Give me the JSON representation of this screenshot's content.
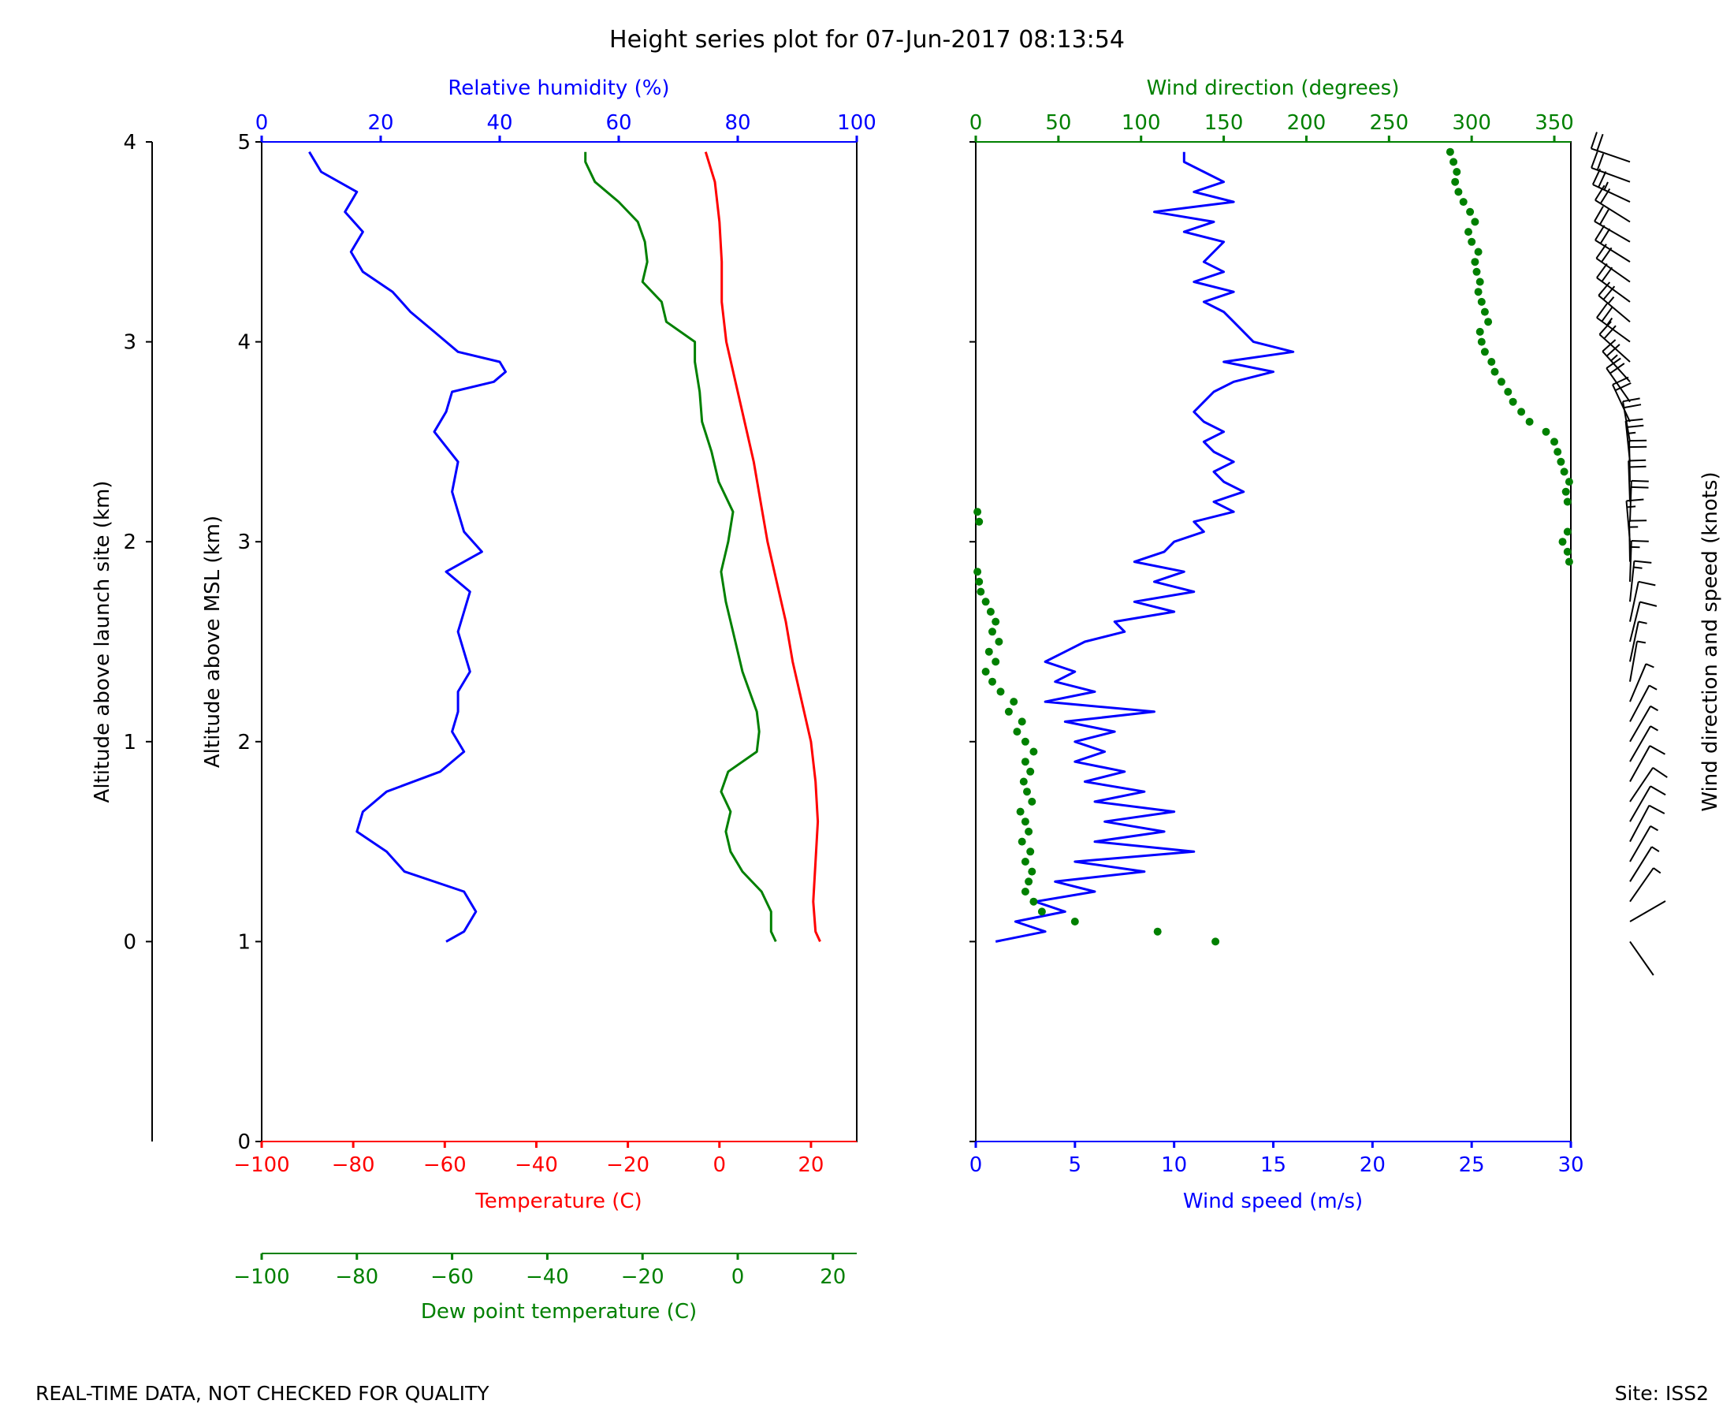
{
  "title": "Height series plot for 07-Jun-2017 08:13:54",
  "footer": {
    "left": "REAL-TIME DATA, NOT CHECKED FOR QUALITY",
    "right": "Site: ISS2"
  },
  "colors": {
    "blue": "#0000ff",
    "red": "#ff0000",
    "green": "#008000",
    "black": "#000000"
  },
  "chart_data": [
    {
      "type": "line",
      "panel": "thermodynamic",
      "ylabel_left_outer": "Altitude above launch site (km)",
      "ylabel_left_inner": "Altitude above MSL (km)",
      "y_msl_range": [
        0,
        5
      ],
      "y_msl_ticks": [
        "0",
        "1",
        "2",
        "3",
        "4",
        "5"
      ],
      "y_launch_ticks": [
        "0",
        "1",
        "2",
        "3",
        "4"
      ],
      "launch_site_altitude_km": 1.0,
      "axes": {
        "temperature": {
          "label": "Temperature (C)",
          "range": [
            -100,
            30
          ],
          "ticks": [
            -100,
            -80,
            -60,
            -40,
            -20,
            0,
            20
          ],
          "tick_labels": [
            "−100",
            "−80",
            "−60",
            "−40",
            "−20",
            "0",
            "20"
          ],
          "color": "#ff0000"
        },
        "dewpoint": {
          "label": "Dew point temperature (C)",
          "range": [
            -100,
            25
          ],
          "ticks": [
            -100,
            -80,
            -60,
            -40,
            -20,
            0,
            20
          ],
          "tick_labels": [
            "−100",
            "−80",
            "−60",
            "−40",
            "−20",
            "0",
            "20"
          ],
          "color": "#008000"
        },
        "rh": {
          "label": "Relative humidity (%)",
          "range": [
            0,
            100
          ],
          "ticks": [
            0,
            20,
            40,
            60,
            80,
            100
          ],
          "tick_labels": [
            "0",
            "20",
            "40",
            "60",
            "80",
            "100"
          ],
          "color": "#0000ff"
        }
      },
      "series": [
        {
          "name": "Temperature",
          "units": "C",
          "color": "#ff0000",
          "alt": [
            1.0,
            1.05,
            1.2,
            1.4,
            1.6,
            1.8,
            2.0,
            2.2,
            2.4,
            2.6,
            2.8,
            3.0,
            3.2,
            3.4,
            3.6,
            3.8,
            4.0,
            4.2,
            4.4,
            4.6,
            4.8,
            4.95
          ],
          "values": [
            22,
            21,
            20.5,
            21,
            21.5,
            21,
            20,
            18,
            16,
            14.5,
            12.5,
            10.5,
            9,
            7.5,
            5.5,
            3.5,
            1.5,
            0.5,
            0.5,
            0,
            -1,
            -3
          ]
        },
        {
          "name": "Dew point",
          "units": "C",
          "color": "#008000",
          "alt": [
            1.0,
            1.05,
            1.15,
            1.25,
            1.35,
            1.45,
            1.55,
            1.65,
            1.75,
            1.85,
            1.95,
            2.05,
            2.15,
            2.25,
            2.35,
            2.45,
            2.55,
            2.7,
            2.85,
            3.0,
            3.15,
            3.3,
            3.45,
            3.6,
            3.75,
            3.9,
            4.0,
            4.1,
            4.2,
            4.3,
            4.4,
            4.5,
            4.6,
            4.7,
            4.8,
            4.9,
            4.95
          ],
          "values": [
            8,
            7,
            7,
            5,
            1,
            -1.5,
            -2.5,
            -1.5,
            -3.5,
            -2,
            4,
            4.5,
            4,
            2.5,
            1,
            0,
            -1,
            -2.5,
            -3.5,
            -2,
            -1,
            -4,
            -5.5,
            -7.5,
            -8,
            -9,
            -9,
            -15,
            -16,
            -20,
            -19,
            -19.5,
            -21,
            -25,
            -30,
            -32,
            -32
          ]
        },
        {
          "name": "Relative humidity",
          "units": "%",
          "color": "#0000ff",
          "alt": [
            1.0,
            1.05,
            1.15,
            1.25,
            1.35,
            1.45,
            1.55,
            1.65,
            1.75,
            1.85,
            1.95,
            2.05,
            2.15,
            2.25,
            2.35,
            2.45,
            2.55,
            2.65,
            2.75,
            2.85,
            2.95,
            3.05,
            3.15,
            3.25,
            3.4,
            3.55,
            3.65,
            3.75,
            3.8,
            3.85,
            3.9,
            3.95,
            4.05,
            4.15,
            4.25,
            4.35,
            4.45,
            4.55,
            4.65,
            4.75,
            4.85,
            4.95
          ],
          "values": [
            31,
            34,
            36,
            34,
            24,
            21,
            16,
            17,
            21,
            30,
            34,
            32,
            33,
            33,
            35,
            34,
            33,
            34,
            35,
            31,
            37,
            34,
            33,
            32,
            33,
            29,
            31,
            32,
            39,
            41,
            40,
            33,
            29,
            25,
            22,
            17,
            15,
            17,
            14,
            16,
            10,
            8
          ]
        }
      ]
    },
    {
      "type": "line",
      "panel": "wind",
      "axes": {
        "speed": {
          "label": "Wind speed (m/s)",
          "range": [
            0,
            30
          ],
          "ticks": [
            0,
            5,
            10,
            15,
            20,
            25,
            30
          ],
          "tick_labels": [
            "0",
            "5",
            "10",
            "15",
            "20",
            "25",
            "30"
          ],
          "color": "#0000ff"
        },
        "direction": {
          "label": "Wind direction (degrees)",
          "range": [
            0,
            360
          ],
          "ticks": [
            0,
            50,
            100,
            150,
            200,
            250,
            300,
            350
          ],
          "tick_labels": [
            "0",
            "50",
            "100",
            "150",
            "200",
            "250",
            "300",
            "350"
          ],
          "color": "#008000"
        }
      },
      "barb_label": "Wind direction and speed (knots)",
      "series": [
        {
          "name": "Wind speed",
          "units": "m/s",
          "color": "#0000ff",
          "alt": [
            1.0,
            1.05,
            1.1,
            1.15,
            1.2,
            1.25,
            1.3,
            1.35,
            1.4,
            1.45,
            1.5,
            1.55,
            1.6,
            1.65,
            1.7,
            1.75,
            1.8,
            1.85,
            1.9,
            1.95,
            2.0,
            2.05,
            2.1,
            2.15,
            2.2,
            2.25,
            2.3,
            2.35,
            2.4,
            2.45,
            2.5,
            2.55,
            2.6,
            2.65,
            2.7,
            2.75,
            2.8,
            2.85,
            2.9,
            2.95,
            3.0,
            3.05,
            3.1,
            3.15,
            3.2,
            3.25,
            3.3,
            3.35,
            3.4,
            3.45,
            3.5,
            3.55,
            3.6,
            3.65,
            3.7,
            3.75,
            3.8,
            3.85,
            3.9,
            3.95,
            4.0,
            4.05,
            4.1,
            4.15,
            4.2,
            4.25,
            4.3,
            4.35,
            4.4,
            4.45,
            4.5,
            4.55,
            4.6,
            4.65,
            4.7,
            4.75,
            4.8,
            4.85,
            4.9,
            4.95
          ],
          "values": [
            1.0,
            3.5,
            2.0,
            4.5,
            3.0,
            6.0,
            4.0,
            8.5,
            5.0,
            11.0,
            6.0,
            9.5,
            6.5,
            10.0,
            6.0,
            8.5,
            5.5,
            7.5,
            5.0,
            6.5,
            5.0,
            7.0,
            4.5,
            9.0,
            3.5,
            6.0,
            4.0,
            5.0,
            3.5,
            4.5,
            5.5,
            7.5,
            7.0,
            10.0,
            8.0,
            11.0,
            9.0,
            10.5,
            8.0,
            9.5,
            10.0,
            11.5,
            11.0,
            13.0,
            12.0,
            13.5,
            12.5,
            12.0,
            13.0,
            12.0,
            11.5,
            12.5,
            11.5,
            11.0,
            11.5,
            12.0,
            13.0,
            15.0,
            12.5,
            16.0,
            14.0,
            13.5,
            13.0,
            12.5,
            11.5,
            13.0,
            11.0,
            12.5,
            11.5,
            12.0,
            12.5,
            10.5,
            12.0,
            9.0,
            13.0,
            11.0,
            12.5,
            11.5,
            10.5,
            10.5
          ]
        },
        {
          "name": "Wind direction",
          "units": "degrees",
          "color": "#008000",
          "alt": [
            1.0,
            1.05,
            1.1,
            1.15,
            1.2,
            1.25,
            1.3,
            1.35,
            1.4,
            1.45,
            1.5,
            1.55,
            1.6,
            1.65,
            1.7,
            1.75,
            1.8,
            1.85,
            1.9,
            1.95,
            2.0,
            2.05,
            2.1,
            2.15,
            2.2,
            2.25,
            2.3,
            2.35,
            2.4,
            2.45,
            2.5,
            2.55,
            2.6,
            2.65,
            2.7,
            2.75,
            2.8,
            2.85,
            2.9,
            2.95,
            3.0,
            3.05,
            3.1,
            3.15,
            3.2,
            3.25,
            3.3,
            3.35,
            3.4,
            3.45,
            3.5,
            3.55,
            3.6,
            3.65,
            3.7,
            3.75,
            3.8,
            3.85,
            3.9,
            3.95,
            4.0,
            4.05,
            4.1,
            4.15,
            4.2,
            4.25,
            4.3,
            4.35,
            4.4,
            4.45,
            4.5,
            4.55,
            4.6,
            4.65,
            4.7,
            4.75,
            4.8,
            4.85,
            4.9,
            4.95
          ],
          "values": [
            145,
            110,
            60,
            40,
            35,
            30,
            32,
            34,
            30,
            33,
            28,
            32,
            30,
            27,
            34,
            31,
            29,
            33,
            30,
            35,
            30,
            25,
            28,
            20,
            23,
            15,
            10,
            6,
            12,
            8,
            14,
            10,
            12,
            9,
            6,
            3,
            2,
            1,
            359,
            358,
            355,
            358,
            2,
            1,
            358,
            357,
            359,
            356,
            354,
            352,
            350,
            345,
            335,
            330,
            325,
            322,
            318,
            314,
            312,
            308,
            306,
            305,
            310,
            308,
            306,
            304,
            305,
            303,
            302,
            304,
            300,
            298,
            302,
            299,
            295,
            292,
            290,
            291,
            289,
            287
          ]
        }
      ]
    }
  ]
}
